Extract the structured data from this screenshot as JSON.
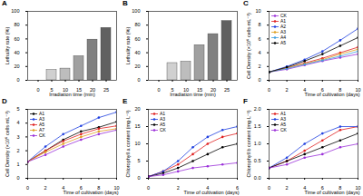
{
  "chart_data": [
    {
      "type": "bar",
      "title": "A",
      "x_label": "Irradiation time (min)",
      "y_label": "Lethality rate (%)",
      "categories": [
        "0",
        "5",
        "10",
        "15",
        "20",
        "25"
      ],
      "values": [
        0,
        15,
        17,
        35,
        59,
        76
      ],
      "colors": [
        "#e0e0e0",
        "#d0d0d0",
        "#bdbdbd",
        "#a0a0a0",
        "#808080",
        "#606060"
      ],
      "ylim": [
        0,
        100
      ],
      "yticks": [
        0,
        20,
        40,
        60,
        80,
        100
      ]
    },
    {
      "type": "bar",
      "title": "B",
      "x_label": "Irradiation time (min)",
      "y_label": "Lethality rate (%)",
      "categories": [
        "0",
        "5",
        "10",
        "15",
        "20",
        "25"
      ],
      "values": [
        0,
        25,
        27,
        51,
        67,
        86
      ],
      "colors": [
        "#e0e0e0",
        "#d0d0d0",
        "#bdbdbd",
        "#a0a0a0",
        "#808080",
        "#606060"
      ],
      "ylim": [
        0,
        100
      ],
      "yticks": [
        0,
        20,
        40,
        60,
        80,
        100
      ]
    },
    {
      "type": "line",
      "title": "C",
      "x_label": "Time of cultivation (days)",
      "y_label": "Cell Density (×10⁶ cells·mL⁻¹)",
      "x": [
        0,
        2,
        4,
        6,
        8,
        10
      ],
      "marker": "circle",
      "legend": "top-left",
      "xlim": [
        0,
        10
      ],
      "xticks": [
        0,
        2,
        4,
        6,
        8,
        10
      ],
      "ylim": [
        0,
        10
      ],
      "yticks": [
        0,
        2,
        4,
        6,
        8,
        10
      ],
      "series": [
        {
          "name": "CK",
          "color": "#9b30d9",
          "values": [
            1.2,
            1.6,
            2.2,
            2.8,
            3.3,
            3.8
          ]
        },
        {
          "name": "A1",
          "color": "#e02020",
          "values": [
            1.2,
            1.8,
            2.5,
            3.2,
            4.0,
            4.8
          ]
        },
        {
          "name": "A2",
          "color": "#2040e0",
          "values": [
            1.2,
            2.0,
            3.0,
            4.2,
            5.8,
            7.5
          ]
        },
        {
          "name": "A3",
          "color": "#e0a020",
          "values": [
            1.2,
            1.8,
            2.4,
            3.0,
            3.8,
            4.5
          ]
        },
        {
          "name": "A4",
          "color": "#40a0e0",
          "values": [
            1.2,
            1.7,
            2.3,
            2.9,
            3.5,
            4.2
          ]
        },
        {
          "name": "A5",
          "color": "#000000",
          "values": [
            1.2,
            1.9,
            2.8,
            3.8,
            5.0,
            6.2
          ]
        }
      ]
    },
    {
      "type": "line",
      "title": "D",
      "x_label": "Time of cultivation (days)",
      "y_label": "Cell Density (×10⁶ cells·mL⁻¹)",
      "x": [
        0,
        2,
        4,
        6,
        8,
        10
      ],
      "marker": "circle",
      "legend": "top-left",
      "xlim": [
        0,
        10
      ],
      "xticks": [
        0,
        2,
        4,
        6,
        8,
        10
      ],
      "ylim": [
        0,
        5
      ],
      "yticks": [
        0,
        1,
        2,
        3,
        4,
        5
      ],
      "series": [
        {
          "name": "A1",
          "color": "#000000",
          "values": [
            1.2,
            2.0,
            2.8,
            3.4,
            3.7,
            4.1
          ]
        },
        {
          "name": "A3",
          "color": "#2040e0",
          "values": [
            1.2,
            2.3,
            3.2,
            3.8,
            4.4,
            4.8
          ]
        },
        {
          "name": "A5",
          "color": "#e02020",
          "values": [
            1.2,
            2.0,
            2.7,
            3.2,
            3.6,
            3.8
          ]
        },
        {
          "name": "A7",
          "color": "#e0a020",
          "values": [
            1.2,
            1.9,
            2.5,
            3.0,
            3.4,
            3.6
          ]
        },
        {
          "name": "CK",
          "color": "#9b30d9",
          "values": [
            1.2,
            1.7,
            2.3,
            2.8,
            3.2,
            3.5
          ]
        }
      ]
    },
    {
      "type": "line",
      "title": "E",
      "x_label": "Time of cultivation (days)",
      "y_label": "Chlorophyll a content (mg·L⁻¹)",
      "x": [
        0,
        1,
        2,
        3,
        4,
        5,
        6
      ],
      "marker": "circle",
      "legend": "top-left",
      "xlim": [
        0,
        6
      ],
      "xticks": [
        0,
        2,
        4,
        6
      ],
      "ylim": [
        0,
        20
      ],
      "yticks": [
        0,
        5,
        10,
        15,
        20
      ],
      "series": [
        {
          "name": "A1",
          "color": "#e02020",
          "values": [
            0.5,
            2,
            4,
            7,
            10,
            12,
            13
          ]
        },
        {
          "name": "A3",
          "color": "#2040e0",
          "values": [
            0.5,
            2,
            5,
            9,
            12,
            14,
            15
          ]
        },
        {
          "name": "A5",
          "color": "#000000",
          "values": [
            0.5,
            1.5,
            3,
            5,
            7,
            9,
            10
          ]
        },
        {
          "name": "CK",
          "color": "#9b30d9",
          "values": [
            0.5,
            1,
            2,
            3,
            3.5,
            4,
            4.5
          ]
        }
      ]
    },
    {
      "type": "line",
      "title": "F",
      "x_label": "Time of cultivation (days)",
      "y_label": "Chlorophyll b content (mg·L⁻¹)",
      "x": [
        0,
        2,
        4,
        6,
        8,
        10
      ],
      "marker": "circle",
      "legend": "top-left",
      "xlim": [
        0,
        10
      ],
      "xticks": [
        0,
        2,
        4,
        6,
        8,
        10
      ],
      "ylim": [
        0,
        2
      ],
      "yticks": [
        {
          "value": 0,
          "label": "0.0"
        },
        0.5,
        {
          "value": 1,
          "label": "1.0"
        },
        1.5,
        {
          "value": 2,
          "label": "2.0"
        }
      ],
      "series": [
        {
          "name": "A1",
          "color": "#e02020",
          "values": [
            0.3,
            0.5,
            0.8,
            1.1,
            1.4,
            1.5
          ]
        },
        {
          "name": "A3",
          "color": "#2040e0",
          "values": [
            0.3,
            0.6,
            1.0,
            1.3,
            1.5,
            1.5
          ]
        },
        {
          "name": "A5",
          "color": "#000000",
          "values": [
            0.3,
            0.5,
            0.7,
            0.9,
            1.1,
            1.3
          ]
        },
        {
          "name": "CK",
          "color": "#9b30d9",
          "values": [
            0.3,
            0.4,
            0.6,
            0.7,
            0.9,
            1.0
          ]
        }
      ]
    }
  ]
}
